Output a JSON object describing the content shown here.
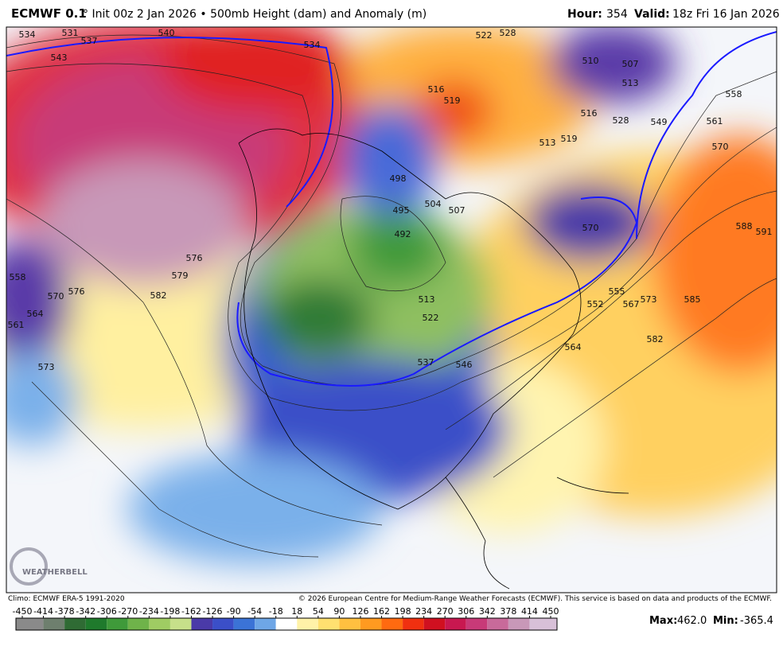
{
  "header": {
    "model": "ECMWF 0.1",
    "init": "° Init 00z 2 Jan 2026 • 500mb Height (dam) and Anomaly (m)",
    "hour_label": "Hour:",
    "hour": "354",
    "valid_label": "Valid:",
    "valid": "18z Fri 16 Jan 2026"
  },
  "map": {
    "logo": "WEATHERBELL",
    "contour_labels": [
      "534",
      "531",
      "537",
      "540",
      "543",
      "534",
      "522",
      "528",
      "510",
      "507",
      "513",
      "516",
      "528",
      "549",
      "558",
      "561",
      "570",
      "519",
      "513",
      "519",
      "498",
      "504",
      "507",
      "495",
      "492",
      "513",
      "522",
      "537",
      "546",
      "552",
      "555",
      "567",
      "573",
      "564",
      "582",
      "585",
      "588",
      "591",
      "570",
      "576",
      "579",
      "582",
      "573",
      "561",
      "564",
      "558",
      "570",
      "576",
      "516"
    ]
  },
  "footer": {
    "climo": "Climo: ECMWF ERA-5 1991-2020",
    "copyright": "© 2026 European Centre for Medium-Range Weather Forecasts (ECMWF). This service is based on data and products of the ECMWF.",
    "max_label": "Max:",
    "max": "462.0",
    "min_label": "Min:",
    "min": "-365.4"
  },
  "colorbar": {
    "ticks": [
      -450,
      -414,
      -378,
      -342,
      -306,
      -270,
      -234,
      -198,
      -162,
      -126,
      -90,
      -54,
      -18,
      18,
      54,
      90,
      126,
      162,
      198,
      234,
      270,
      306,
      342,
      378,
      414,
      450
    ],
    "colors": [
      "#8a8a8a",
      "#6e7f6e",
      "#2f6b34",
      "#1f7a2c",
      "#3f9a3a",
      "#6fb34a",
      "#9fcc63",
      "#c7e08a",
      "#4a3aa8",
      "#3b4fc8",
      "#3b73d6",
      "#6ea6e6",
      "#ffffff",
      "#fff2a8",
      "#ffe070",
      "#ffc040",
      "#ff9a20",
      "#ff6a10",
      "#f03010",
      "#d01020",
      "#c81850",
      "#c83a78",
      "#c86a9a",
      "#c898b8",
      "#d8c0d8"
    ]
  }
}
